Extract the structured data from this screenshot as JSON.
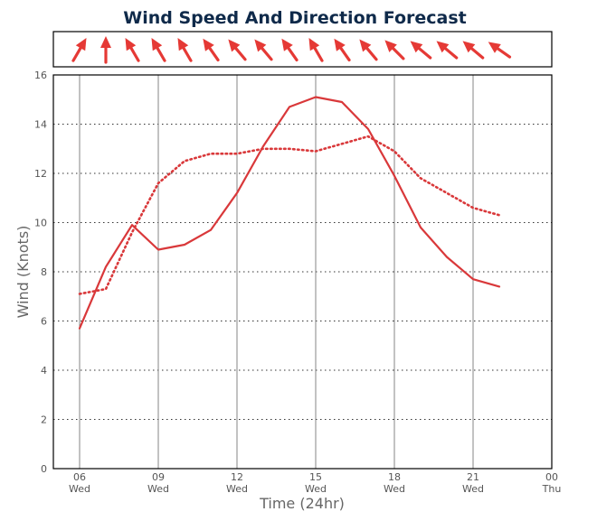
{
  "chart_data": {
    "type": "line",
    "title": "Wind Speed And Direction Forecast",
    "xlabel": "Time (24hr)",
    "ylabel": "Wind (Knots)",
    "ylim": [
      0,
      16
    ],
    "xlim": [
      5,
      24
    ],
    "yticks": [
      0,
      2,
      4,
      6,
      8,
      10,
      12,
      14,
      16
    ],
    "xticks": [
      {
        "hour": 6,
        "label": "06",
        "day": "Wed"
      },
      {
        "hour": 9,
        "label": "09",
        "day": "Wed"
      },
      {
        "hour": 12,
        "label": "12",
        "day": "Wed"
      },
      {
        "hour": 15,
        "label": "15",
        "day": "Wed"
      },
      {
        "hour": 18,
        "label": "18",
        "day": "Wed"
      },
      {
        "hour": 21,
        "label": "21",
        "day": "Wed"
      },
      {
        "hour": 24,
        "label": "00",
        "day": "Thu"
      }
    ],
    "grid": true,
    "x": [
      6,
      7,
      8,
      9,
      10,
      11,
      12,
      13,
      14,
      15,
      16,
      17,
      18,
      19,
      20,
      21,
      22
    ],
    "series": [
      {
        "style": "solid",
        "color": "#d9383a",
        "values": [
          5.7,
          8.2,
          9.9,
          8.9,
          9.1,
          9.7,
          11.2,
          13.1,
          14.7,
          15.1,
          14.9,
          13.8,
          11.9,
          9.8,
          8.6,
          7.7,
          7.4
        ]
      },
      {
        "style": "dotted",
        "color": "#d9383a",
        "values": [
          7.1,
          7.3,
          9.6,
          11.6,
          12.5,
          12.8,
          12.8,
          13.0,
          13.0,
          12.9,
          13.2,
          13.5,
          12.9,
          11.8,
          11.2,
          10.6,
          10.3
        ]
      }
    ],
    "direction_arrows": {
      "color": "#e53935",
      "note_unit": "degrees the arrow points (0 = up, clockwise)",
      "directions": [
        30,
        0,
        -30,
        -30,
        -30,
        -35,
        -40,
        -40,
        -35,
        -30,
        -35,
        -40,
        -45,
        -50,
        -50,
        -50,
        -55
      ]
    }
  }
}
